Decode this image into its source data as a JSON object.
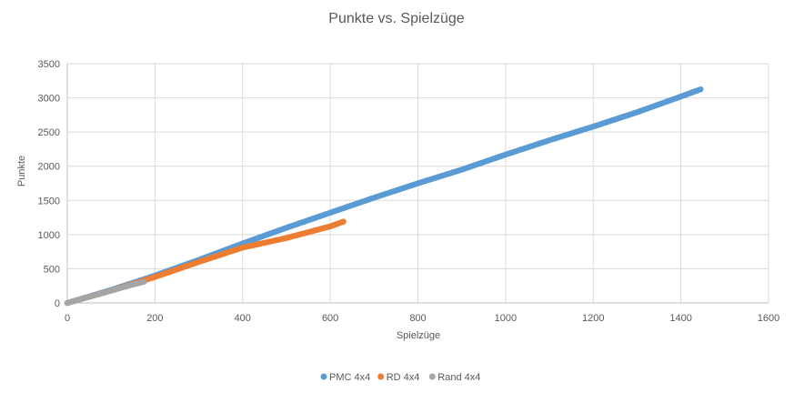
{
  "chart_data": {
    "type": "scatter",
    "title": "Punkte vs. Spielzüge",
    "xlabel": "Spielzüge",
    "ylabel": "Punkte",
    "xlim": [
      0,
      1600
    ],
    "ylim": [
      0,
      3500
    ],
    "x_ticks": [
      0,
      200,
      400,
      600,
      800,
      1000,
      1200,
      1400,
      1600
    ],
    "y_ticks": [
      0,
      500,
      1000,
      1500,
      2000,
      2500,
      3000,
      3500
    ],
    "grid": true,
    "legend_position": "bottom",
    "series": [
      {
        "name": "PMC 4x4",
        "color": "#5B9BD5",
        "points": [
          [
            0,
            0
          ],
          [
            100,
            190
          ],
          [
            200,
            400
          ],
          [
            300,
            630
          ],
          [
            400,
            870
          ],
          [
            500,
            1100
          ],
          [
            600,
            1320
          ],
          [
            700,
            1540
          ],
          [
            800,
            1750
          ],
          [
            900,
            1950
          ],
          [
            1000,
            2170
          ],
          [
            1100,
            2380
          ],
          [
            1200,
            2580
          ],
          [
            1300,
            2790
          ],
          [
            1400,
            3020
          ],
          [
            1445,
            3125
          ]
        ]
      },
      {
        "name": "RD 4x4",
        "color": "#ED7D31",
        "points": [
          [
            0,
            0
          ],
          [
            100,
            180
          ],
          [
            200,
            380
          ],
          [
            300,
            600
          ],
          [
            400,
            810
          ],
          [
            500,
            950
          ],
          [
            600,
            1120
          ],
          [
            630,
            1190
          ]
        ]
      },
      {
        "name": "Rand 4x4",
        "color": "#A5A5A5",
        "points": [
          [
            0,
            0
          ],
          [
            50,
            90
          ],
          [
            100,
            180
          ],
          [
            150,
            270
          ],
          [
            175,
            310
          ]
        ]
      }
    ]
  }
}
